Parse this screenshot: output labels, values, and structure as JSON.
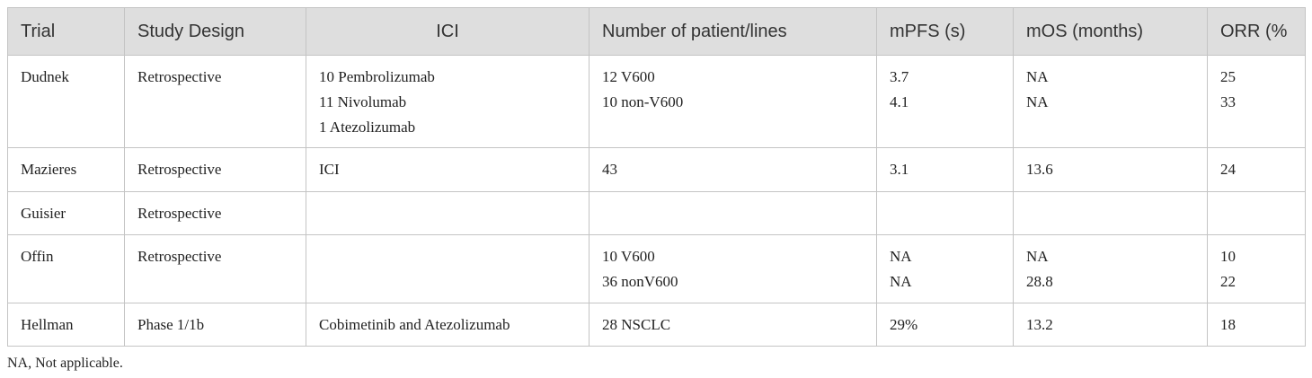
{
  "table": {
    "header": [
      "Trial",
      "Study Design",
      "ICI",
      "Number of patient/lines",
      "mPFS (s)",
      "mOS (months)",
      "ORR (%"
    ],
    "rows": [
      [
        "Dudnek",
        "Retrospective",
        "10 Pembrolizumab\n11 Nivolumab\n1 Atezolizumab",
        "12 V600\n10 non-V600",
        "3.7\n4.1",
        "NA\nNA",
        "25\n33"
      ],
      [
        "Mazieres",
        "Retrospective",
        "ICI",
        "43",
        "3.1",
        "13.6",
        "24"
      ],
      [
        "Guisier",
        "Retrospective",
        null,
        null,
        null,
        null,
        null
      ],
      [
        "Offin",
        "Retrospective",
        null,
        "10 V600\n36 nonV600",
        "NA\nNA",
        "NA\n28.8",
        "10\n22"
      ],
      [
        "Hellman",
        "Phase 1/1b",
        "Cobimetinib and Atezolizumab",
        "28 NSCLC",
        "29%",
        "13.2",
        "18"
      ]
    ],
    "footnote": "NA, Not applicable."
  }
}
